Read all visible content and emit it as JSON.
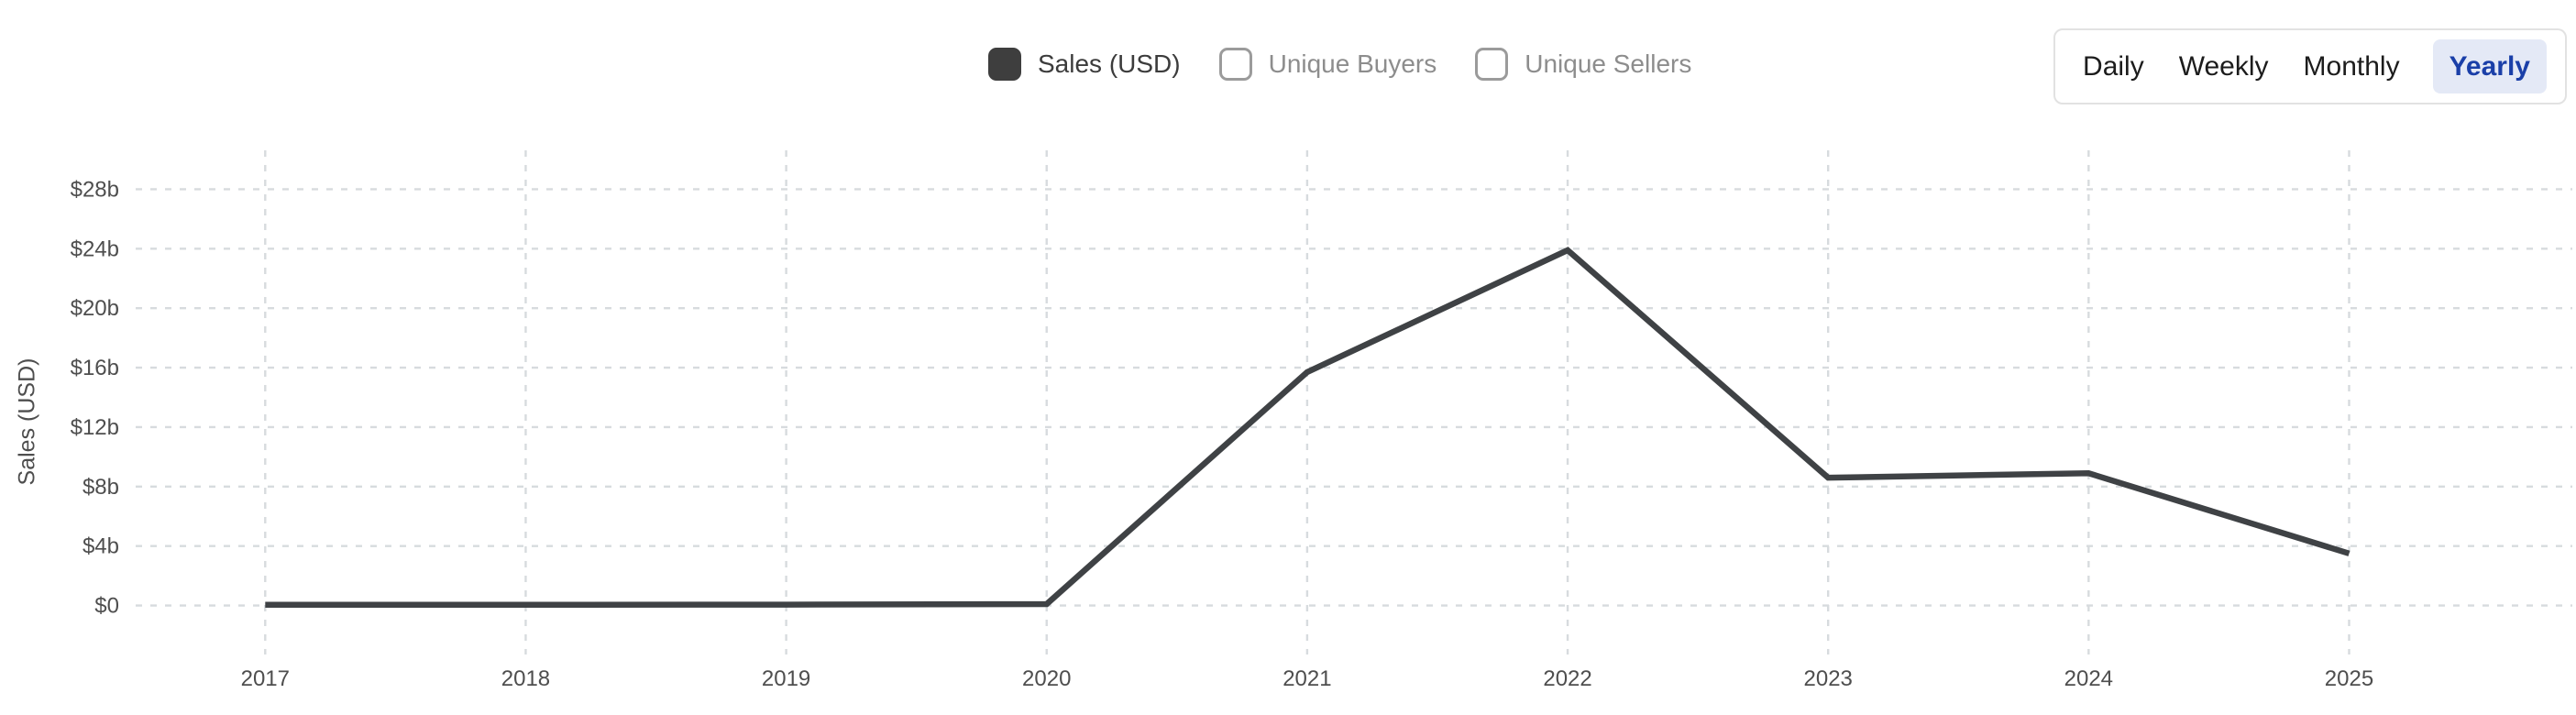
{
  "legend": {
    "items": [
      {
        "label": "Sales (USD)",
        "checked": true
      },
      {
        "label": "Unique Buyers",
        "checked": false
      },
      {
        "label": "Unique Sellers",
        "checked": false
      }
    ]
  },
  "tabs": {
    "items": [
      {
        "label": "Daily",
        "active": false
      },
      {
        "label": "Weekly",
        "active": false
      },
      {
        "label": "Monthly",
        "active": false
      },
      {
        "label": "Yearly",
        "active": true
      }
    ]
  },
  "chart_data": {
    "type": "line",
    "title": "",
    "xlabel": "",
    "ylabel": "Sales (USD)",
    "categories": [
      "2017",
      "2018",
      "2019",
      "2020",
      "2021",
      "2022",
      "2023",
      "2024",
      "2025"
    ],
    "series": [
      {
        "name": "Sales (USD)",
        "values": [
          0.05,
          0.05,
          0.06,
          0.1,
          15.7,
          23.9,
          8.6,
          8.9,
          3.5
        ]
      }
    ],
    "y_ticks": [
      {
        "label": "$28b",
        "value": 28
      },
      {
        "label": "$24b",
        "value": 24
      },
      {
        "label": "$20b",
        "value": 20
      },
      {
        "label": "$16b",
        "value": 16
      },
      {
        "label": "$12b",
        "value": 12
      },
      {
        "label": "$8b",
        "value": 8
      },
      {
        "label": "$4b",
        "value": 4
      },
      {
        "label": "$0",
        "value": 0
      }
    ],
    "ylim": [
      0,
      30.5
    ],
    "grid": true,
    "grid_style": "dashed",
    "legend_position": "top-center"
  },
  "colors": {
    "line": "#3f4245",
    "grid": "#d7dbde",
    "tick_text": "#4e4e4e",
    "dark_text": "#3c3c3c",
    "muted_text": "#8d8d8d",
    "checkbox_checked": "#3e3e3e",
    "checkbox_border": "#9b9b9b",
    "active_tab_text": "#1a3fa8",
    "active_tab_bg": "#e4e9f6",
    "tab_border": "#e2e2e2"
  }
}
